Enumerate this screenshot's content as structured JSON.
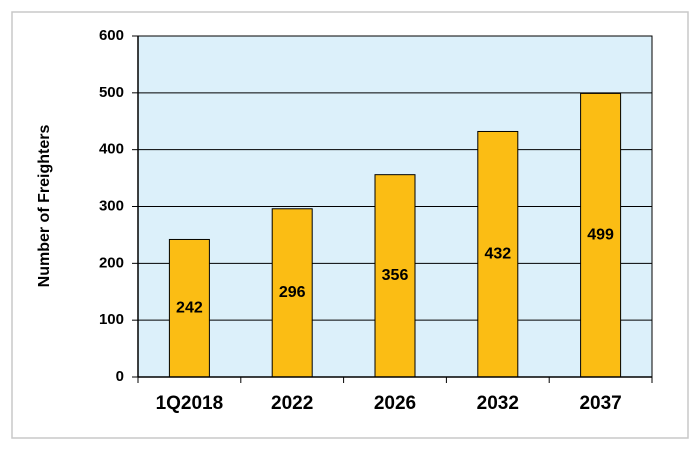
{
  "chart_data": {
    "type": "bar",
    "y_label": "Number of Freighters",
    "categories": [
      "1Q2018",
      "2022",
      "2026",
      "2032",
      "2037"
    ],
    "values": [
      242,
      296,
      356,
      432,
      499
    ],
    "color": "#fbbd14",
    "plot_background": "#dcf0fa",
    "ylim": [
      0,
      600
    ],
    "yticks": [
      0,
      100,
      200,
      300,
      400,
      500,
      600
    ],
    "grid": true
  }
}
